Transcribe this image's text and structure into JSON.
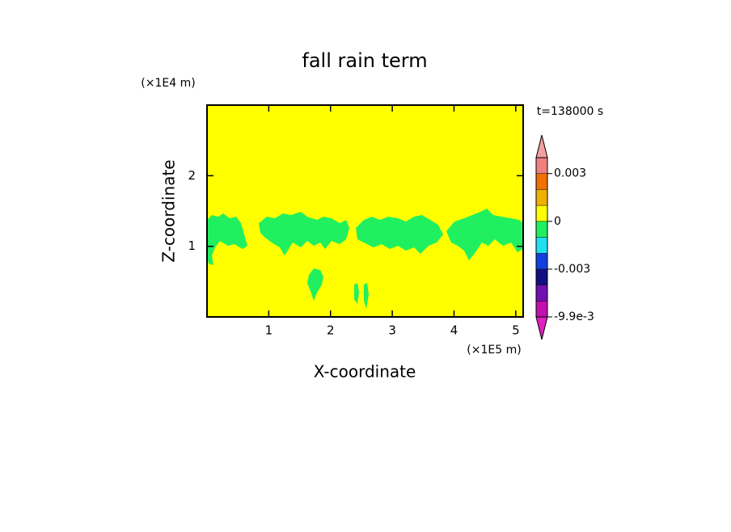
{
  "chart_data": {
    "type": "contour",
    "title": "fall rain term",
    "x_label": "X-coordinate",
    "y_label": "Z-coordinate",
    "x_unit": "(×1E5 m)",
    "y_unit": "(×1E4 m)",
    "time_label": "t=138000 s",
    "xlim": [
      0,
      5.12
    ],
    "xticks": [
      1,
      2,
      3,
      4,
      5
    ],
    "ylim": [
      0,
      3
    ],
    "yticks": [
      1,
      2
    ],
    "background_color": "#ffff00",
    "colorbar": {
      "levels": [
        -0.0099,
        -0.006,
        -0.004,
        -0.003,
        -0.002,
        -0.001,
        0,
        0.001,
        0.002,
        0.003,
        0.006
      ],
      "colors": [
        "#e020c0",
        "#c010b0",
        "#7010b0",
        "#101080",
        "#1040e0",
        "#20e0f0",
        "#20f060",
        "#ffff00",
        "#f0b000",
        "#f07000",
        "#f08080",
        "#f0a0a0"
      ],
      "labels": [
        {
          "value": -0.0099,
          "label": "-9.9e-3"
        },
        {
          "value": -0.003,
          "label": "-0.003"
        },
        0,
        0.003
      ]
    }
  }
}
